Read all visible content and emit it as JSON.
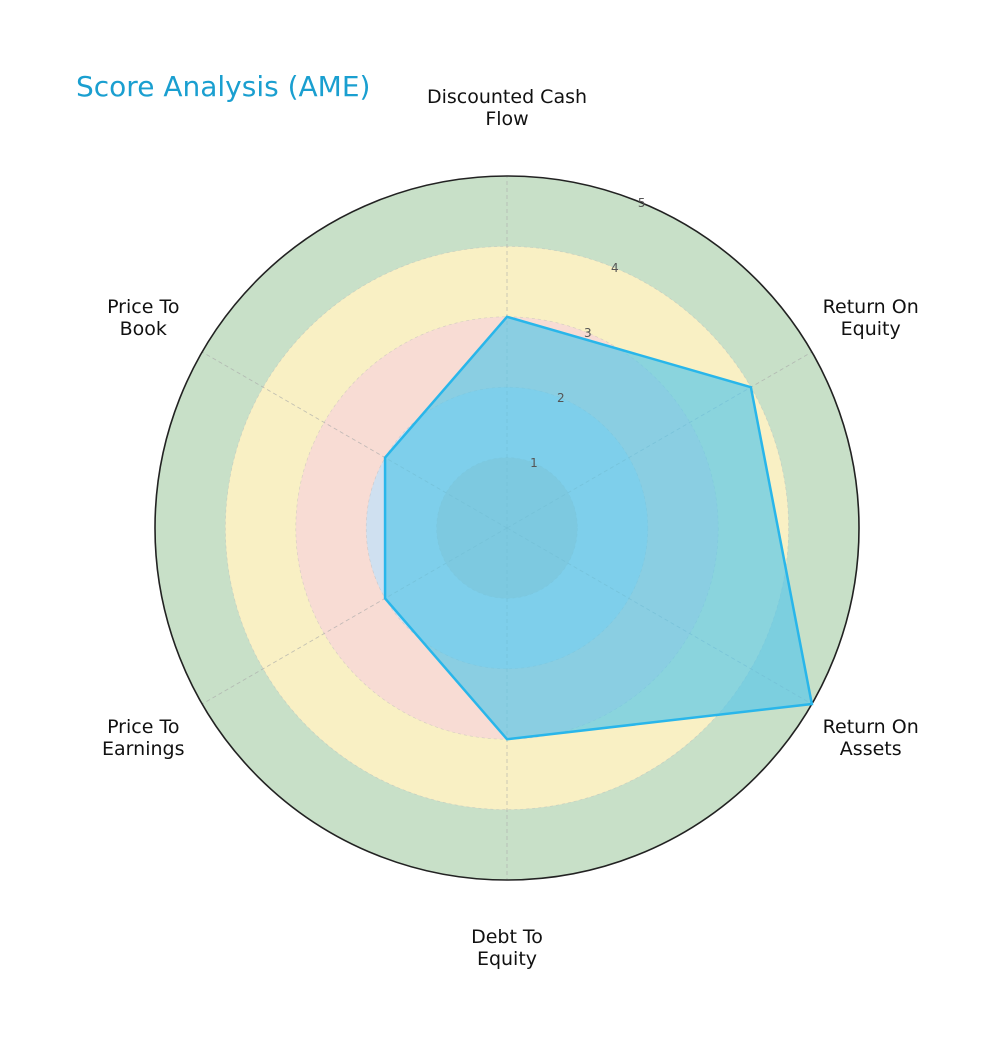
{
  "chart_data": {
    "type": "radar",
    "title": "Score Analysis (AME)",
    "categories": [
      [
        "Discounted Cash",
        "Flow"
      ],
      [
        "Return On",
        "Equity"
      ],
      [
        "Return On",
        "Assets"
      ],
      [
        "Debt To",
        "Equity"
      ],
      [
        "Price To",
        "Earnings"
      ],
      [
        "Price To",
        "Book"
      ]
    ],
    "values": [
      3,
      4,
      5,
      3,
      2,
      2
    ],
    "rlim": [
      0,
      5
    ],
    "rticks": [
      "1",
      "2",
      "3",
      "4",
      "5"
    ],
    "bands": [
      {
        "from": 0,
        "to": 1,
        "color": "#cccccc"
      },
      {
        "from": 1,
        "to": 2,
        "color": "#cfe0f0"
      },
      {
        "from": 2,
        "to": 3,
        "color": "#f8dcd4"
      },
      {
        "from": 3,
        "to": 4,
        "color": "#f9f0c4"
      },
      {
        "from": 4,
        "to": 5,
        "color": "#c8e0c8"
      }
    ],
    "series_color": "#29b6ea",
    "series_fill": "#5bc8e8",
    "grid": true
  }
}
